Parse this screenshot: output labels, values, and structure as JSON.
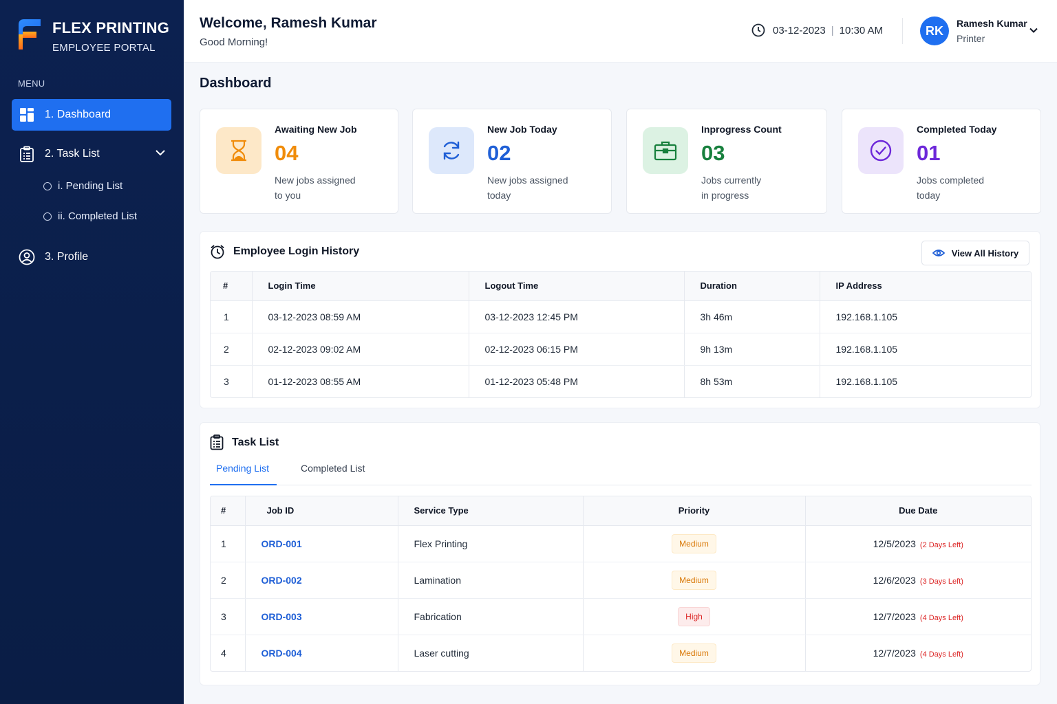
{
  "brand": {
    "name": "FLEX PRINTING",
    "subtitle": "EMPLOYEE PORTAL"
  },
  "sidebar": {
    "menu_label": "MENU",
    "items": [
      {
        "label": "1. Dashboard",
        "icon": "dashboard-grid-icon",
        "active": true
      },
      {
        "label": "2. Task List",
        "icon": "clipboard-list-icon"
      },
      {
        "label": "3. Profile",
        "icon": "user-circle-icon"
      }
    ],
    "sub_items": [
      {
        "label": "i. Pending List"
      },
      {
        "label": "ii. Completed List"
      }
    ]
  },
  "header": {
    "welcome": "Welcome, Ramesh Kumar",
    "greeting": "Good Morning!",
    "date": "03-12-2023",
    "separator": "|",
    "time": "10:30 AM",
    "user": {
      "initials": "RK",
      "name": "Ramesh Kumar",
      "role": "Printer"
    }
  },
  "page_title": "Dashboard",
  "stats": [
    {
      "title": "Awaiting New Job",
      "value": "04",
      "desc1": "New jobs assigned",
      "desc2": "to you",
      "icon": "hourglass-icon",
      "color": "#f08c0a",
      "bg": "#fde8c8"
    },
    {
      "title": "New Job Today",
      "value": "02",
      "desc1": "New jobs assigned",
      "desc2": "today",
      "icon": "refresh-icon",
      "color": "#1f5fd6",
      "bg": "#dde8fb"
    },
    {
      "title": "Inprogress Count",
      "value": "03",
      "desc1": "Jobs currently",
      "desc2": "in progress",
      "icon": "briefcase-icon",
      "color": "#17803d",
      "bg": "#dcf2e3"
    },
    {
      "title": "Completed Today",
      "value": "01",
      "desc1": "Jobs completed",
      "desc2": "today",
      "icon": "check-circle-icon",
      "color": "#6d28d9",
      "bg": "#ece4fb"
    }
  ],
  "login_history": {
    "title": "Employee Login History",
    "view_all": "View All History",
    "columns": [
      "#",
      "Login Time",
      "Logout Time",
      "Duration",
      "IP Address"
    ],
    "rows": [
      [
        "1",
        "03-12-2023 08:59 AM",
        "03-12-2023 12:45 PM",
        "3h 46m",
        "192.168.1.105"
      ],
      [
        "2",
        "02-12-2023 09:02 AM",
        "02-12-2023 06:15 PM",
        "9h 13m",
        "192.168.1.105"
      ],
      [
        "3",
        "01-12-2023 08:55 AM",
        "01-12-2023 05:48 PM",
        "8h 53m",
        "192.168.1.105"
      ]
    ]
  },
  "task_list": {
    "title": "Task List",
    "tabs": [
      "Pending List",
      "Completed List"
    ],
    "columns": [
      "#",
      "Job ID",
      "Service Type",
      "Priority",
      "Due Date"
    ],
    "rows": [
      {
        "num": "1",
        "job": "ORD-001",
        "service": "Flex Printing",
        "priority": "Medium",
        "due": "12/5/2023",
        "left": "(2 Days Left)"
      },
      {
        "num": "2",
        "job": "ORD-002",
        "service": "Lamination",
        "priority": "Medium",
        "due": "12/6/2023",
        "left": "(3 Days Left)"
      },
      {
        "num": "3",
        "job": "ORD-003",
        "service": "Fabrication",
        "priority": "High",
        "due": "12/7/2023",
        "left": "(4 Days Left)"
      },
      {
        "num": "4",
        "job": "ORD-004",
        "service": "Laser cutting",
        "priority": "Medium",
        "due": "12/7/2023",
        "left": "(4 Days Left)"
      }
    ]
  }
}
